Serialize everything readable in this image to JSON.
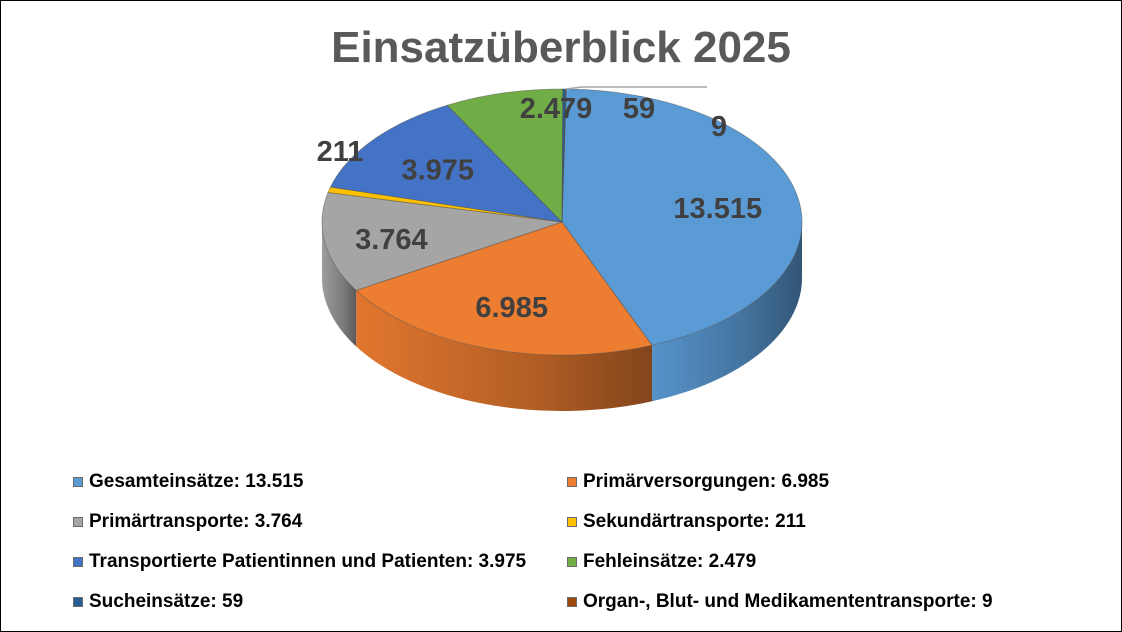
{
  "chart_data": {
    "type": "pie",
    "title": "Einsatzüberblick 2025",
    "legend_position": "bottom",
    "slices": [
      {
        "legend": "Gesamteinsätze: 13.515",
        "value": 13515,
        "label": "13.515",
        "color": "#5b9bd5"
      },
      {
        "legend": "Primärversorgungen: 6.985",
        "value": 6985,
        "label": "6.985",
        "color": "#ed7d31"
      },
      {
        "legend": "Primärtransporte: 3.764",
        "value": 3764,
        "label": "3.764",
        "color": "#a5a5a5"
      },
      {
        "legend": "Sekundärtransporte: 211",
        "value": 211,
        "label": "211",
        "color": "#ffc000"
      },
      {
        "legend": "Transportierte Patientinnen und Patienten: 3.975",
        "value": 3975,
        "label": "3.975",
        "color": "#4472c4"
      },
      {
        "legend": "Fehleinsätze: 2.479",
        "value": 2479,
        "label": "2.479",
        "color": "#70ad47"
      },
      {
        "legend": "Sucheinsätze: 59",
        "value": 59,
        "label": "59",
        "color": "#255e91"
      },
      {
        "legend": "Organ-, Blut- und Medikamententransporte: 9",
        "value": 9,
        "label": "9",
        "color": "#9e480e"
      }
    ]
  }
}
